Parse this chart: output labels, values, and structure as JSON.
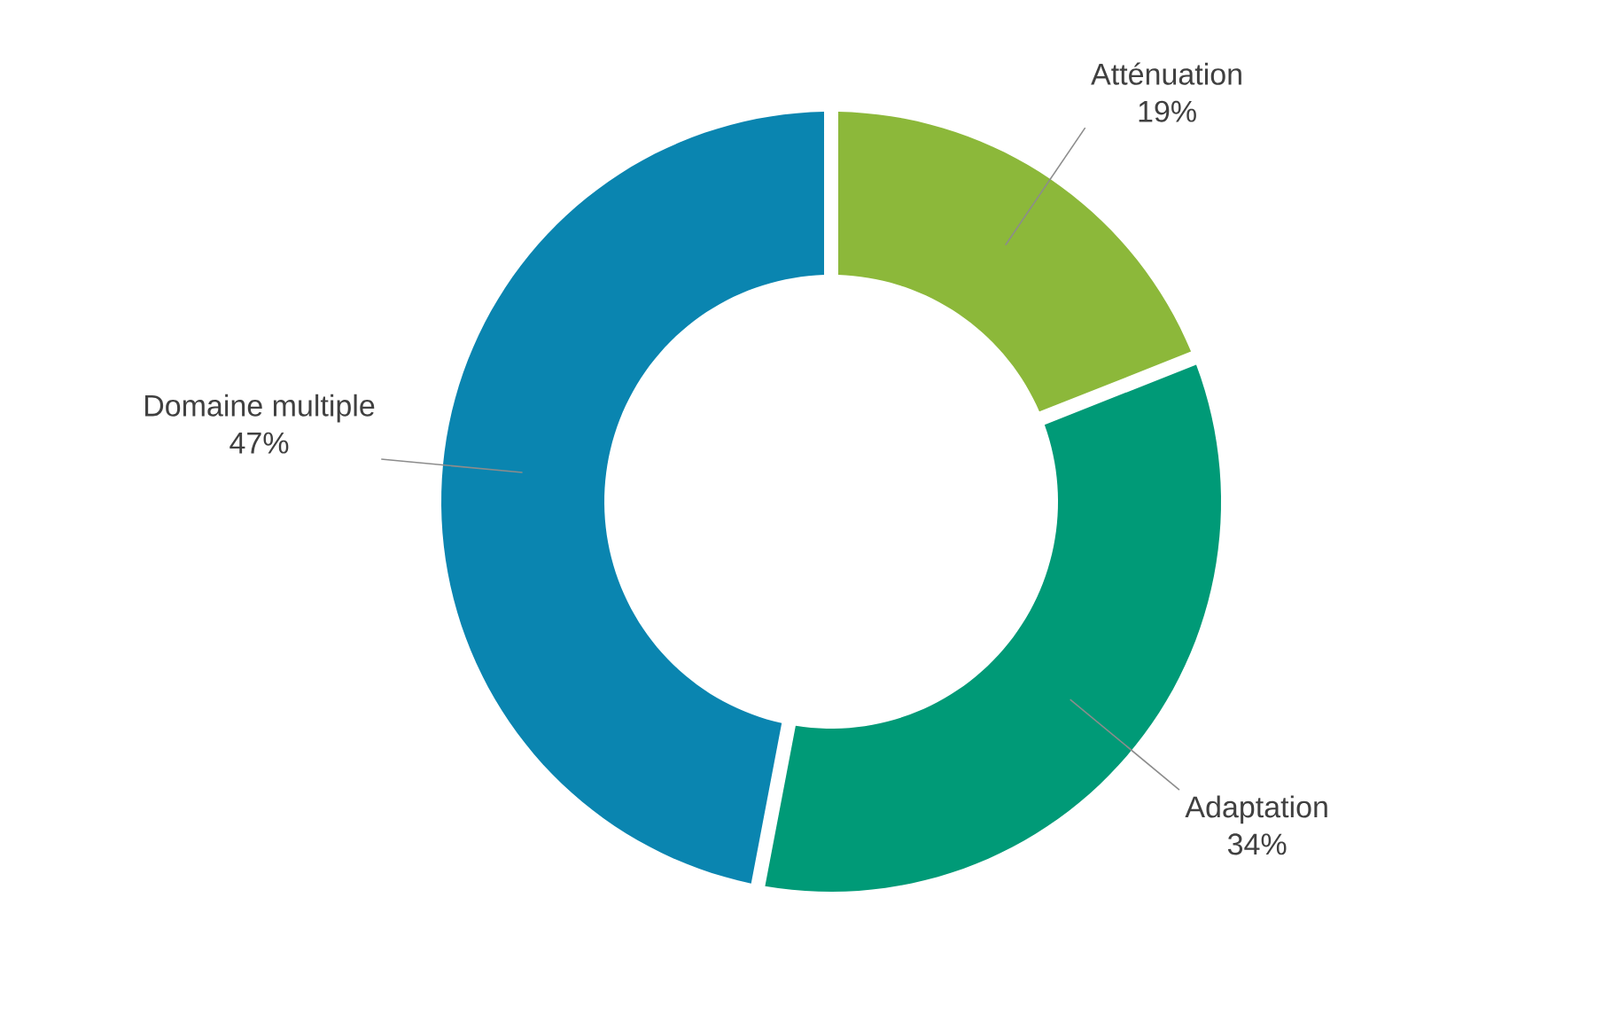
{
  "chart_data": {
    "type": "donut",
    "categories": [
      "Atténuation",
      "Adaptation",
      "Domaine multiple"
    ],
    "values": [
      19,
      34,
      47
    ],
    "value_labels": [
      "19%",
      "34%",
      "47%"
    ],
    "colors": [
      "#8cb83a",
      "#009a77",
      "#0a85b0"
    ]
  }
}
